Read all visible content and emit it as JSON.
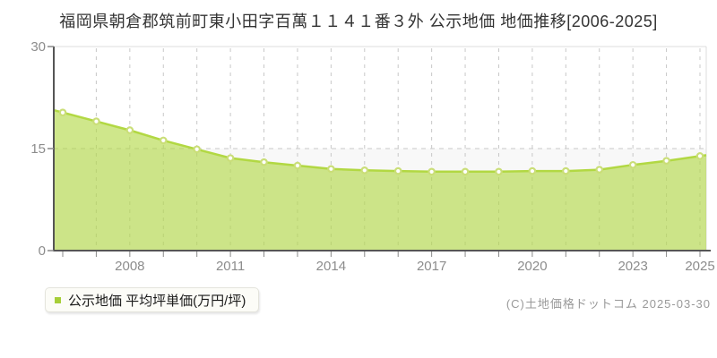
{
  "title": "福岡県朝倉郡筑前町東小田字百萬１１４１番３外 公示地価 地価推移[2006-2025]",
  "legend": {
    "label": "公示地価 平均坪単価(万円/坪)",
    "marker_color": "#a6ce38"
  },
  "footer": {
    "copyright": "(C)土地価格ドットコム 2025-03-30"
  },
  "chart_data": {
    "type": "area",
    "title": "福岡県朝倉郡筑前町東小田字百萬１１４１番３外 公示地価 地価推移[2006-2025]",
    "series_name": "公示地価 平均坪単価(万円/坪)",
    "x": [
      2006,
      2007,
      2008,
      2009,
      2010,
      2011,
      2012,
      2013,
      2014,
      2015,
      2016,
      2017,
      2018,
      2019,
      2020,
      2021,
      2022,
      2023,
      2024,
      2025
    ],
    "values": [
      20.3,
      19.0,
      17.7,
      16.2,
      14.9,
      13.6,
      13.0,
      12.5,
      12.0,
      11.8,
      11.7,
      11.6,
      11.6,
      11.6,
      11.7,
      11.7,
      11.9,
      12.6,
      13.2,
      13.9
    ],
    "ylabel": "万円/坪",
    "ylim": [
      0,
      30
    ],
    "yticks": [
      0,
      15,
      30
    ],
    "ytick_labels": [
      "0",
      "15",
      "30"
    ],
    "xtick_labels": [
      "2008",
      "2011",
      "2014",
      "2017",
      "2020",
      "2023",
      "2025"
    ],
    "grid": "dashed",
    "legend_position": "bottom-left",
    "colors": {
      "line": "#b2d843",
      "fill": "rgba(178,216,67,0.62)",
      "marker_fill": "#ffffff",
      "marker_stroke": "#cade78",
      "grid": "#c8c8c8",
      "border": "#dcdcdc",
      "axis": "#555555",
      "tick": "#888888",
      "tick_label": "#8c8c8c",
      "lower_band": "rgba(0,0,0,0.028)"
    }
  }
}
